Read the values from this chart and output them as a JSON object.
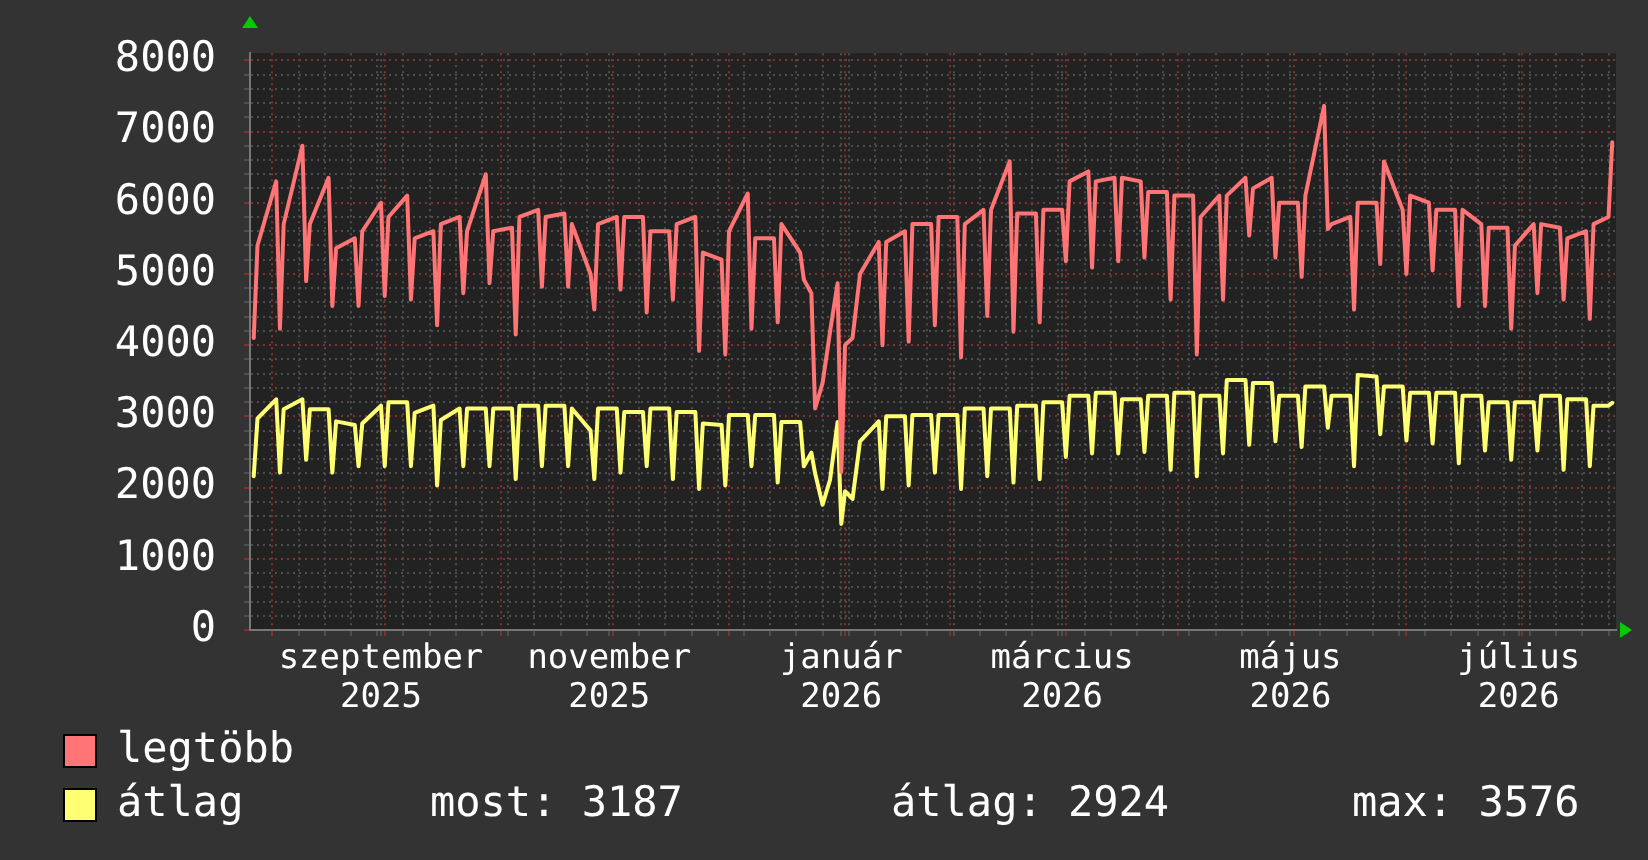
{
  "chart_data": {
    "type": "line",
    "x": [
      "2025-08-27",
      "2025-08-28",
      "2025-09-02",
      "2025-09-03",
      "2025-09-04",
      "2025-09-09",
      "2025-09-10",
      "2025-09-11",
      "2025-09-16",
      "2025-09-17",
      "2025-09-18",
      "2025-09-23",
      "2025-09-24",
      "2025-09-25",
      "2025-09-30",
      "2025-10-01",
      "2025-10-02",
      "2025-10-07",
      "2025-10-08",
      "2025-10-09",
      "2025-10-14",
      "2025-10-15",
      "2025-10-16",
      "2025-10-21",
      "2025-10-22",
      "2025-10-23",
      "2025-10-28",
      "2025-10-29",
      "2025-10-30",
      "2025-11-04",
      "2025-11-05",
      "2025-11-06",
      "2025-11-11",
      "2025-11-12",
      "2025-11-13",
      "2025-11-18",
      "2025-11-19",
      "2025-11-20",
      "2025-11-25",
      "2025-11-26",
      "2025-11-27",
      "2025-12-02",
      "2025-12-03",
      "2025-12-04",
      "2025-12-09",
      "2025-12-10",
      "2025-12-11",
      "2025-12-16",
      "2025-12-17",
      "2025-12-18",
      "2025-12-23",
      "2025-12-24",
      "2025-12-25",
      "2025-12-30",
      "2025-12-31",
      "2026-01-01",
      "2026-01-06",
      "2026-01-07",
      "2026-01-08",
      "2026-01-13",
      "2026-01-14",
      "2026-01-15",
      "2026-01-20",
      "2026-01-21",
      "2026-01-23",
      "2026-01-24",
      "2026-01-26",
      "2026-01-28",
      "2026-01-30",
      "2026-01-31",
      "2026-02-01",
      "2026-02-03",
      "2026-02-05",
      "2026-02-10",
      "2026-02-11",
      "2026-02-12",
      "2026-02-17",
      "2026-02-18",
      "2026-02-19",
      "2026-02-24",
      "2026-02-25",
      "2026-02-26",
      "2026-03-03",
      "2026-03-04",
      "2026-03-05",
      "2026-03-10",
      "2026-03-11",
      "2026-03-12",
      "2026-03-17",
      "2026-03-18",
      "2026-03-19",
      "2026-03-24",
      "2026-03-25",
      "2026-03-26",
      "2026-03-31",
      "2026-04-01",
      "2026-04-02",
      "2026-04-07",
      "2026-04-08",
      "2026-04-09",
      "2026-04-14",
      "2026-04-15",
      "2026-04-16",
      "2026-04-21",
      "2026-04-22",
      "2026-04-23",
      "2026-04-28",
      "2026-04-29",
      "2026-04-30",
      "2026-05-05",
      "2026-05-06",
      "2026-05-07",
      "2026-05-12",
      "2026-05-13",
      "2026-05-14",
      "2026-05-19",
      "2026-05-20",
      "2026-05-21",
      "2026-05-26",
      "2026-05-27",
      "2026-05-28",
      "2026-06-02",
      "2026-06-03",
      "2026-06-04",
      "2026-06-09",
      "2026-06-10",
      "2026-06-11",
      "2026-06-16",
      "2026-06-17",
      "2026-06-18",
      "2026-06-23",
      "2026-06-24",
      "2026-06-25",
      "2026-06-30",
      "2026-07-01",
      "2026-07-02",
      "2026-07-07",
      "2026-07-08",
      "2026-07-09",
      "2026-07-14",
      "2026-07-15",
      "2026-07-16",
      "2026-07-21",
      "2026-07-22",
      "2026-07-23",
      "2026-07-28",
      "2026-07-29",
      "2026-07-30",
      "2026-08-04",
      "2026-08-05",
      "2026-08-06",
      "2026-08-11",
      "2026-08-12",
      "2026-08-13",
      "2026-08-18",
      "2026-08-19",
      "2026-08-20",
      "2026-08-24",
      "2026-08-25"
    ],
    "series": [
      {
        "name": "legtöbb",
        "color": "#ff7474",
        "values": [
          4100,
          5400,
          6300,
          4230,
          5700,
          6800,
          4900,
          5700,
          6350,
          4550,
          5360,
          5500,
          4550,
          5600,
          6000,
          4690,
          5800,
          6100,
          4640,
          5500,
          5600,
          4280,
          5700,
          5800,
          4730,
          5600,
          6400,
          4870,
          5600,
          5650,
          4150,
          5800,
          5900,
          4820,
          5800,
          5850,
          4820,
          5700,
          5000,
          4500,
          5700,
          5800,
          4780,
          5800,
          5800,
          4460,
          5600,
          5600,
          4640,
          5700,
          5800,
          3920,
          5300,
          5200,
          3870,
          5600,
          6130,
          4230,
          5500,
          5500,
          4320,
          5700,
          5300,
          4920,
          4730,
          3110,
          3470,
          4190,
          4870,
          2220,
          4000,
          4100,
          5000,
          5450,
          4000,
          5450,
          5600,
          4050,
          5700,
          5700,
          4280,
          5800,
          5800,
          3830,
          5700,
          5900,
          4410,
          5900,
          6580,
          4190,
          5850,
          5850,
          4320,
          5900,
          5900,
          5180,
          6300,
          6440,
          5090,
          6300,
          6350,
          5180,
          6350,
          6300,
          5230,
          6150,
          6150,
          4640,
          6100,
          6100,
          3870,
          5800,
          6100,
          4640,
          6100,
          6350,
          5540,
          6200,
          6350,
          5230,
          6000,
          6000,
          4960,
          6100,
          7360,
          5630,
          5700,
          5800,
          4500,
          6000,
          6000,
          5140,
          6580,
          5900,
          5000,
          6100,
          6000,
          5050,
          5900,
          5900,
          4550,
          5900,
          5700,
          4550,
          5650,
          5650,
          4230,
          5400,
          5700,
          4730,
          5700,
          5650,
          4640,
          5500,
          5600,
          4370,
          5700,
          5800,
          6850
        ]
      },
      {
        "name": "átlag",
        "color": "#ffff74",
        "values": [
          2160,
          2970,
          3240,
          2210,
          3100,
          3240,
          2390,
          3100,
          3100,
          2210,
          2930,
          2880,
          2300,
          2900,
          3150,
          2300,
          3200,
          3200,
          2300,
          3050,
          3150,
          2030,
          2950,
          3110,
          2300,
          3110,
          3110,
          2300,
          3110,
          3110,
          2120,
          3150,
          3150,
          2300,
          3150,
          3150,
          2300,
          3110,
          2800,
          2120,
          3110,
          3110,
          2210,
          3060,
          3060,
          2300,
          3110,
          3110,
          2120,
          3060,
          3060,
          1980,
          2900,
          2880,
          2030,
          3020,
          3020,
          2300,
          3020,
          3020,
          2070,
          2920,
          2920,
          2300,
          2490,
          2200,
          1760,
          2110,
          2920,
          1490,
          1950,
          1840,
          2650,
          2930,
          1980,
          3000,
          3000,
          2030,
          3020,
          3020,
          2210,
          3020,
          3020,
          1980,
          3110,
          3110,
          2160,
          3110,
          3110,
          2070,
          3150,
          3150,
          2120,
          3200,
          3200,
          2430,
          3290,
          3290,
          2480,
          3330,
          3330,
          2480,
          3240,
          3240,
          2500,
          3290,
          3290,
          2250,
          3330,
          3330,
          2160,
          3290,
          3290,
          2480,
          3510,
          3510,
          2600,
          3470,
          3470,
          2650,
          3290,
          3290,
          2570,
          3420,
          3420,
          2840,
          3290,
          3290,
          2300,
          3580,
          3560,
          2750,
          3420,
          3420,
          2660,
          3330,
          3330,
          2620,
          3330,
          3330,
          2340,
          3290,
          3290,
          2520,
          3200,
          3200,
          2390,
          3200,
          3200,
          2520,
          3290,
          3290,
          2250,
          3240,
          3240,
          2300,
          3150,
          3150,
          3190
        ]
      }
    ],
    "xlim": [
      "2025-08-26",
      "2026-08-26"
    ],
    "xticks": [
      {
        "value": "2025-09-01",
        "label": null
      },
      {
        "value": "2025-09-08",
        "label": null
      },
      {
        "value": "2025-09-15",
        "label": null
      },
      {
        "value": "2025-09-22",
        "label": null
      },
      {
        "value": "2025-09-29",
        "label": null
      },
      {
        "value": "2025-09-30",
        "label": "szeptember 2025"
      },
      {
        "value": "2025-10-01",
        "label": null
      },
      {
        "value": "2025-10-06",
        "label": null
      },
      {
        "value": "2025-10-13",
        "label": null
      },
      {
        "value": "2025-10-20",
        "label": null
      },
      {
        "value": "2025-10-27",
        "label": null
      },
      {
        "value": "2025-11-01",
        "label": null
      },
      {
        "value": "2025-11-03",
        "label": null
      },
      {
        "value": "2025-11-10",
        "label": null
      },
      {
        "value": "2025-11-17",
        "label": null
      },
      {
        "value": "2025-11-24",
        "label": null
      },
      {
        "value": "2025-11-30",
        "label": "november 2025"
      },
      {
        "value": "2025-12-01",
        "label": null
      },
      {
        "value": "2025-12-08",
        "label": null
      },
      {
        "value": "2025-12-15",
        "label": null
      },
      {
        "value": "2025-12-22",
        "label": null
      },
      {
        "value": "2025-12-29",
        "label": null
      },
      {
        "value": "2026-01-01",
        "label": null
      },
      {
        "value": "2026-01-05",
        "label": null
      },
      {
        "value": "2026-01-12",
        "label": null
      },
      {
        "value": "2026-01-19",
        "label": null
      },
      {
        "value": "2026-01-26",
        "label": null
      },
      {
        "value": "2026-01-31",
        "label": "január 2026"
      },
      {
        "value": "2026-02-01",
        "label": null
      },
      {
        "value": "2026-02-02",
        "label": null
      },
      {
        "value": "2026-02-09",
        "label": null
      },
      {
        "value": "2026-02-16",
        "label": null
      },
      {
        "value": "2026-02-23",
        "label": null
      },
      {
        "value": "2026-03-01",
        "label": null
      },
      {
        "value": "2026-03-02",
        "label": null
      },
      {
        "value": "2026-03-09",
        "label": null
      },
      {
        "value": "2026-03-16",
        "label": null
      },
      {
        "value": "2026-03-23",
        "label": null
      },
      {
        "value": "2026-03-30",
        "label": null
      },
      {
        "value": "2026-03-31",
        "label": "március 2026"
      },
      {
        "value": "2026-04-01",
        "label": null
      },
      {
        "value": "2026-04-06",
        "label": null
      },
      {
        "value": "2026-04-13",
        "label": null
      },
      {
        "value": "2026-04-20",
        "label": null
      },
      {
        "value": "2026-04-27",
        "label": null
      },
      {
        "value": "2026-05-01",
        "label": null
      },
      {
        "value": "2026-05-04",
        "label": null
      },
      {
        "value": "2026-05-11",
        "label": null
      },
      {
        "value": "2026-05-18",
        "label": null
      },
      {
        "value": "2026-05-25",
        "label": null
      },
      {
        "value": "2026-05-31",
        "label": "május 2026"
      },
      {
        "value": "2026-06-01",
        "label": null
      },
      {
        "value": "2026-06-08",
        "label": null
      },
      {
        "value": "2026-06-15",
        "label": null
      },
      {
        "value": "2026-06-22",
        "label": null
      },
      {
        "value": "2026-06-29",
        "label": null
      },
      {
        "value": "2026-07-01",
        "label": null
      },
      {
        "value": "2026-07-06",
        "label": null
      },
      {
        "value": "2026-07-13",
        "label": null
      },
      {
        "value": "2026-07-20",
        "label": null
      },
      {
        "value": "2026-07-27",
        "label": null
      },
      {
        "value": "2026-07-31",
        "label": "július 2026"
      },
      {
        "value": "2026-08-01",
        "label": null
      },
      {
        "value": "2026-08-03",
        "label": null
      },
      {
        "value": "2026-08-10",
        "label": null
      },
      {
        "value": "2026-08-17",
        "label": null
      },
      {
        "value": "2026-08-24",
        "label": null
      }
    ],
    "ylim": [
      0,
      8100
    ],
    "yticks": [
      0,
      {
        "value": 200,
        "label": null
      },
      {
        "value": 400,
        "label": null
      },
      {
        "value": 600,
        "label": null
      },
      {
        "value": 800,
        "label": null
      },
      1000,
      {
        "value": 1200,
        "label": null
      },
      {
        "value": 1400,
        "label": null
      },
      {
        "value": 1600,
        "label": null
      },
      {
        "value": 1800,
        "label": null
      },
      2000,
      {
        "value": 2200,
        "label": null
      },
      {
        "value": 2400,
        "label": null
      },
      {
        "value": 2600,
        "label": null
      },
      {
        "value": 2800,
        "label": null
      },
      3000,
      {
        "value": 3200,
        "label": null
      },
      {
        "value": 3400,
        "label": null
      },
      {
        "value": 3600,
        "label": null
      },
      {
        "value": 3800,
        "label": null
      },
      4000,
      {
        "value": 4200,
        "label": null
      },
      {
        "value": 4400,
        "label": null
      },
      {
        "value": 4600,
        "label": null
      },
      {
        "value": 4800,
        "label": null
      },
      5000,
      {
        "value": 5200,
        "label": null
      },
      {
        "value": 5400,
        "label": null
      },
      {
        "value": 5600,
        "label": null
      },
      {
        "value": 5800,
        "label": null
      },
      6000,
      {
        "value": 6200,
        "label": null
      },
      {
        "value": 6400,
        "label": null
      },
      {
        "value": 6600,
        "label": null
      },
      {
        "value": 6800,
        "label": null
      },
      7000,
      {
        "value": 7200,
        "label": null
      },
      {
        "value": 7400,
        "label": null
      },
      {
        "value": 7600,
        "label": null
      },
      {
        "value": 7800,
        "label": null
      },
      8000
    ],
    "grid": true,
    "legend": "bottom left",
    "marker": "none",
    "annotations": [
      "most: 3187",
      "átlag: 2924",
      "max: 3576"
    ]
  }
}
